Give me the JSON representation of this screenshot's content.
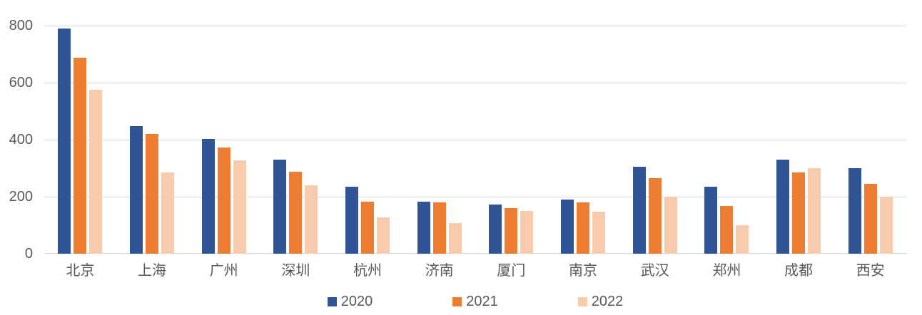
{
  "chart_data": {
    "type": "bar",
    "title": "",
    "xlabel": "",
    "ylabel": "",
    "categories": [
      "北京",
      "上海",
      "广州",
      "深圳",
      "杭州",
      "济南",
      "厦门",
      "南京",
      "武汉",
      "郑州",
      "成都",
      "西安"
    ],
    "series": [
      {
        "name": "2020",
        "color": "#2F5597",
        "values": [
          790,
          448,
          403,
          330,
          235,
          183,
          172,
          190,
          305,
          234,
          330,
          300
        ]
      },
      {
        "name": "2021",
        "color": "#ED7D31",
        "values": [
          688,
          420,
          373,
          288,
          183,
          180,
          161,
          181,
          266,
          168,
          285,
          245
        ]
      },
      {
        "name": "2022",
        "color": "#F8CBAD",
        "values": [
          575,
          286,
          328,
          240,
          128,
          107,
          150,
          148,
          201,
          99,
          300,
          200
        ]
      }
    ],
    "ylim": [
      0,
      800
    ],
    "y_ticks": [
      0,
      200,
      400,
      600,
      800
    ],
    "grid": true,
    "legend_position": "bottom",
    "colors": {
      "gridline": "#d9d9d9",
      "axis_line": "#d9d9d9",
      "tick_text": "#595959",
      "background": "#ffffff"
    }
  }
}
